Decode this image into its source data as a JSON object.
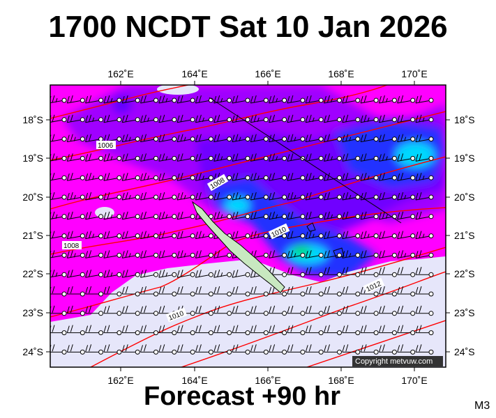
{
  "header": {
    "title": "1700 NCDT Sat 10 Jan 2026"
  },
  "footer": {
    "forecast": "Forecast +90 hr",
    "model": "M3"
  },
  "map": {
    "lon_ticks": [
      "162˚E",
      "164˚E",
      "166˚E",
      "168˚E",
      "170˚E"
    ],
    "lat_ticks": [
      "18˚S",
      "19˚S",
      "20˚S",
      "21˚S",
      "22˚S",
      "23˚S",
      "24˚S"
    ],
    "isobar_labels": [
      "1006",
      "1008",
      "1008",
      "1010",
      "1010",
      "1012"
    ],
    "copyright": "Copyright metvuw.com"
  },
  "colors": {
    "magenta": "#ff00ff",
    "violet": "#a000ff",
    "purple": "#7000ff",
    "blue": "#2030ff",
    "cyan": "#00d8ff",
    "green": "#00e070",
    "calm": "#e6e6fa",
    "isobar": "#ff0000"
  }
}
